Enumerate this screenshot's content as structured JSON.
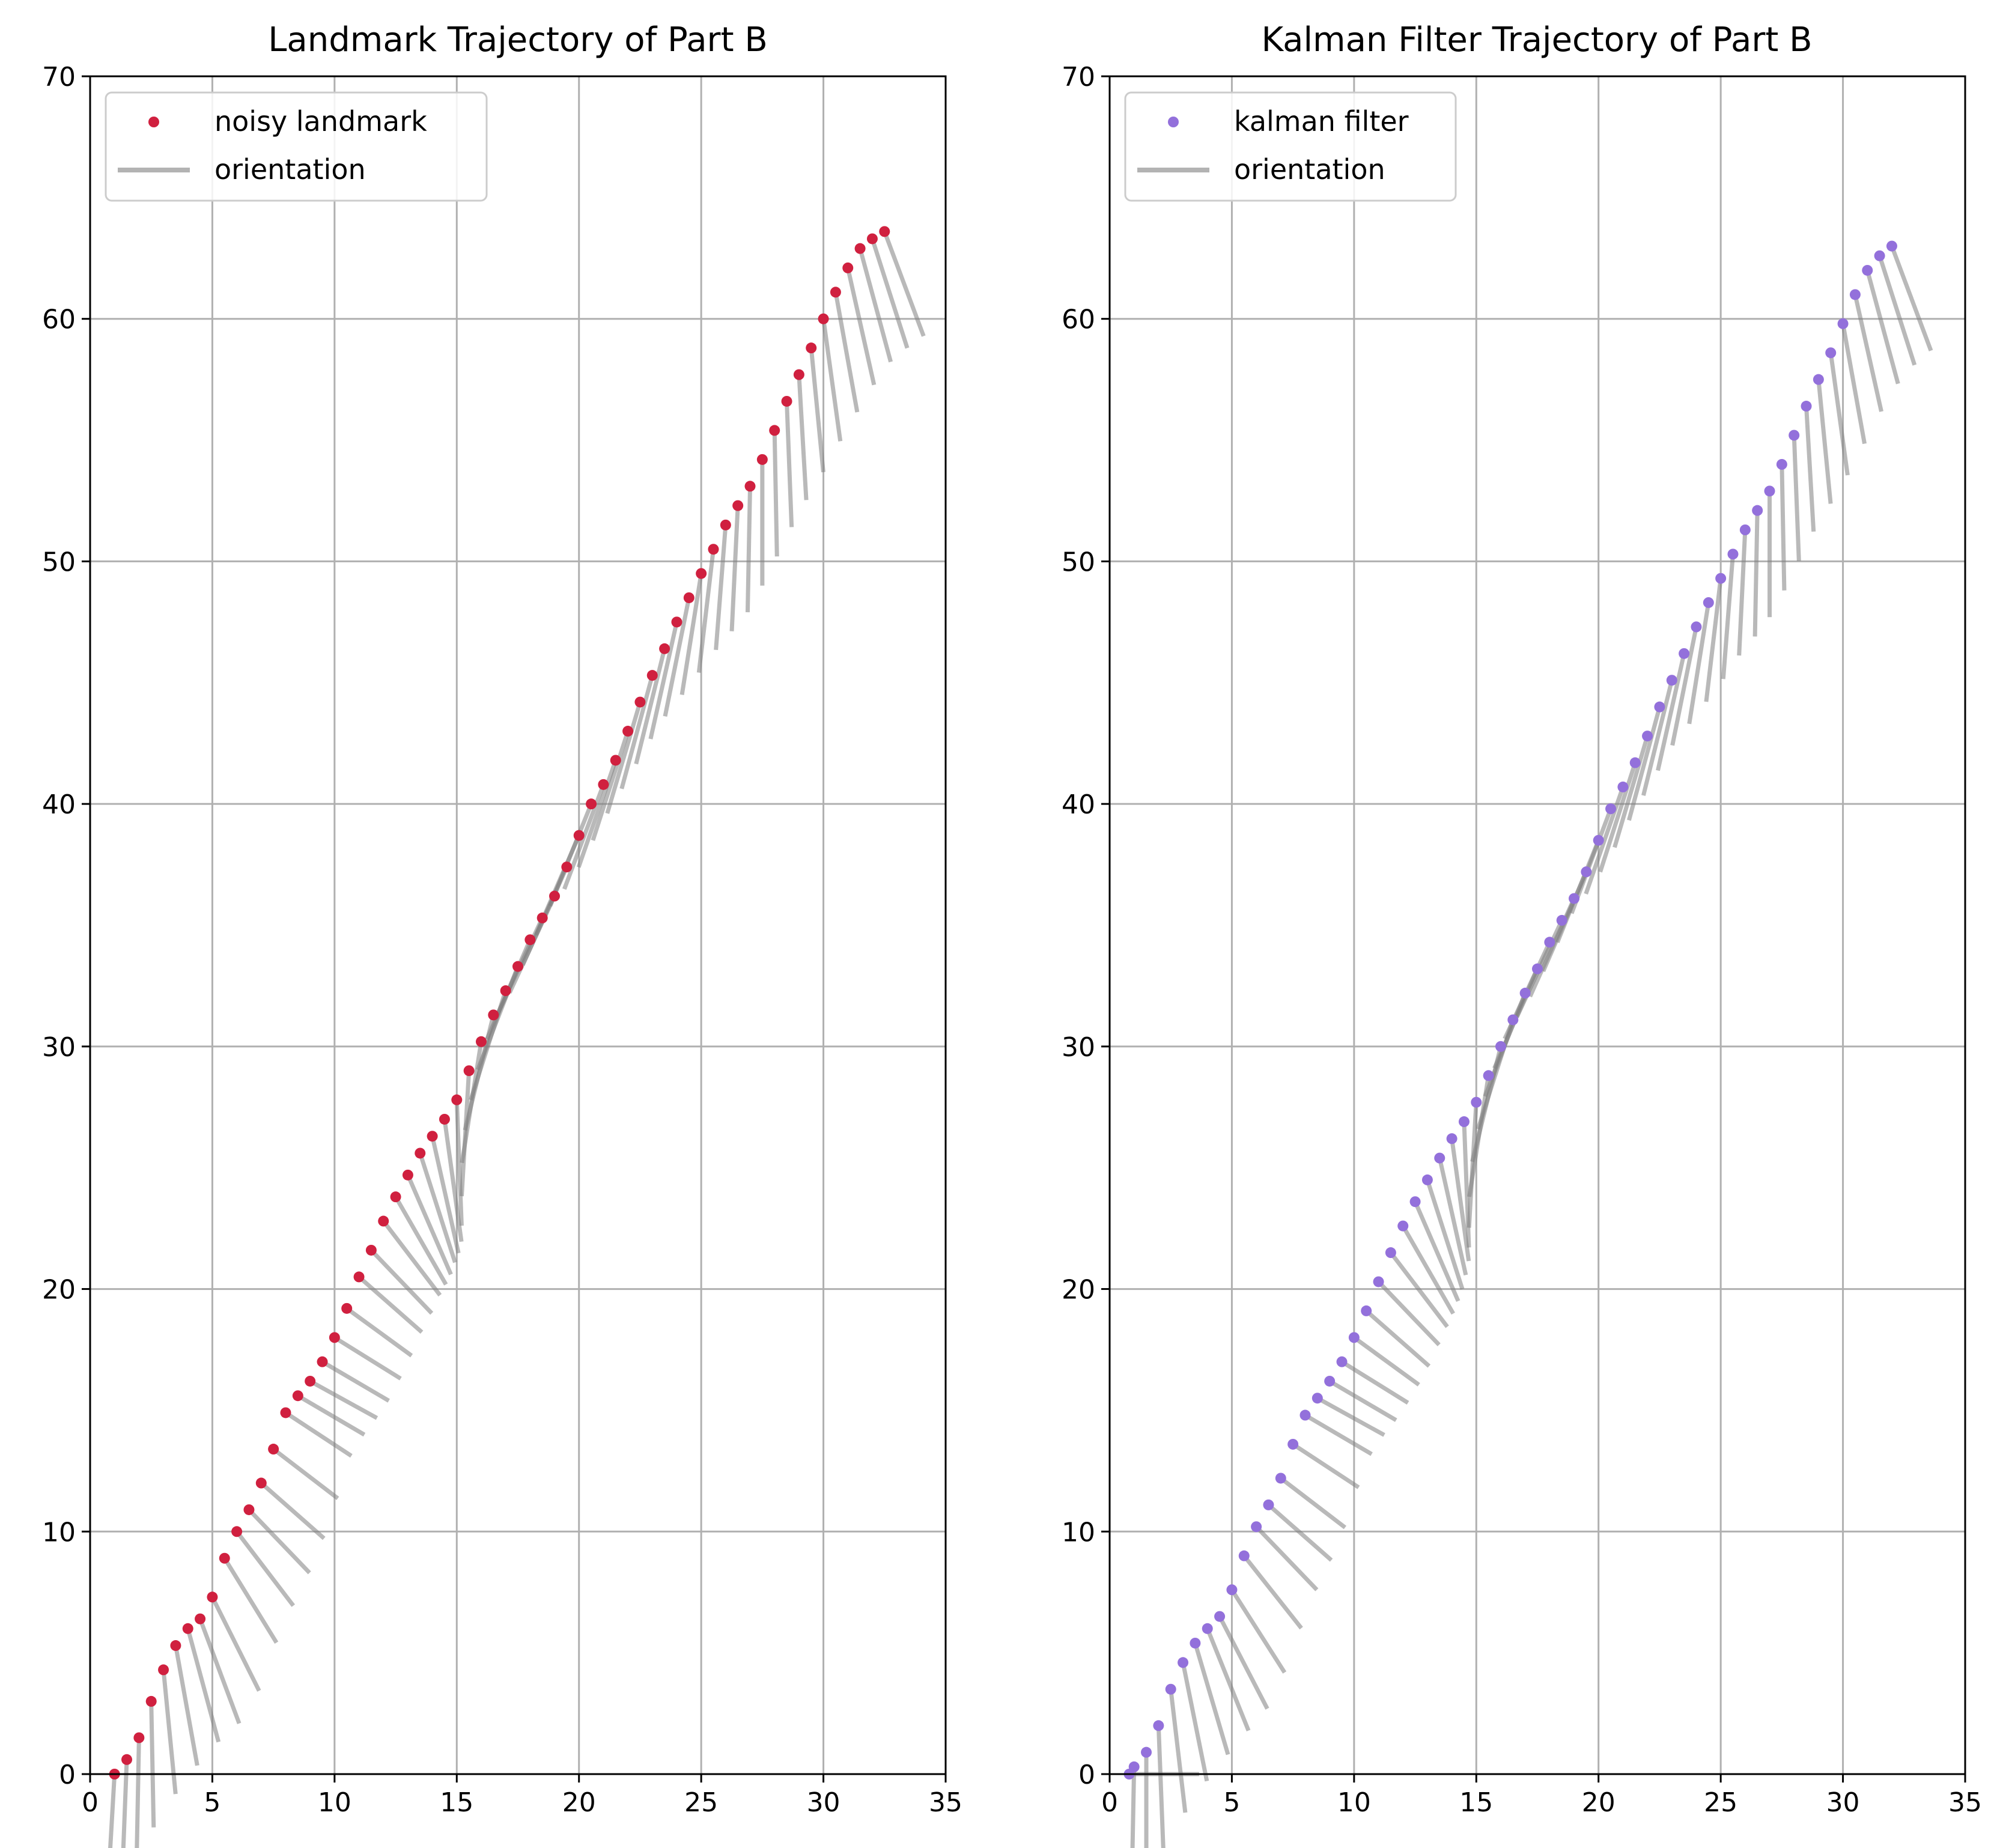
{
  "figure": {
    "background": "#ffffff",
    "grid_color": "#b0b0b0",
    "orientation_color": "#808080"
  },
  "chart_data": [
    {
      "type": "scatter",
      "title": "Landmark Trajectory of Part B",
      "xlabel": "",
      "ylabel": "",
      "xlim": [
        0,
        35
      ],
      "ylim": [
        0,
        70
      ],
      "xticks": [
        "0",
        "5",
        "10",
        "15",
        "20",
        "25",
        "30",
        "35"
      ],
      "yticks": [
        "0",
        "10",
        "20",
        "30",
        "40",
        "50",
        "60",
        "70"
      ],
      "grid": true,
      "legend_position": "top-left",
      "legend": [
        {
          "label": "noisy landmark",
          "marker": "dot",
          "color": "#d0203f"
        },
        {
          "label": "orientation",
          "marker": "line",
          "color": "#b3b3b3"
        }
      ],
      "series": [
        {
          "name": "noisy landmark",
          "kind": "points",
          "color": "#d0203f",
          "x": [
            1.0,
            1.5,
            2.0,
            2.5,
            3.0,
            3.5,
            4.0,
            4.5,
            5.0,
            5.5,
            6.0,
            6.5,
            7.0,
            7.5,
            8.0,
            8.5,
            9.0,
            9.5,
            10.0,
            10.5,
            11.0,
            11.5,
            12.0,
            12.5,
            13.0,
            13.5,
            14.0,
            14.5,
            15.0,
            15.5,
            16.0,
            16.5,
            17.0,
            17.5,
            18.0,
            18.5,
            19.0,
            19.5,
            20.0,
            20.5,
            21.0,
            21.5,
            22.0,
            22.5,
            23.0,
            23.5,
            24.0,
            24.5,
            25.0,
            25.5,
            26.0,
            26.5,
            27.0,
            27.5,
            28.0,
            28.5,
            29.0,
            29.5,
            30.0,
            30.5,
            31.0,
            31.5,
            32.0,
            32.5
          ],
          "y": [
            0.0,
            0.6,
            1.5,
            3.0,
            4.3,
            5.3,
            6.0,
            6.4,
            7.3,
            8.9,
            10.0,
            10.9,
            12.0,
            13.4,
            14.9,
            15.6,
            16.2,
            17.0,
            18.0,
            19.2,
            20.5,
            21.6,
            22.8,
            23.8,
            24.7,
            25.6,
            26.3,
            27.0,
            27.8,
            29.0,
            30.2,
            31.3,
            32.3,
            33.3,
            34.4,
            35.3,
            36.2,
            37.4,
            38.7,
            40.0,
            40.8,
            41.8,
            43.0,
            44.2,
            45.3,
            46.4,
            47.5,
            48.5,
            49.5,
            50.5,
            51.5,
            52.3,
            53.1,
            54.2,
            55.4,
            56.6,
            57.7,
            58.8,
            60.0,
            61.1,
            62.1,
            62.9,
            63.3,
            63.6
          ]
        },
        {
          "name": "orientation",
          "kind": "segments",
          "color": "#808080",
          "length": 5.2,
          "angle_deg": [
            96,
            94,
            92,
            88,
            80,
            72,
            64,
            56,
            48,
            42,
            36,
            30,
            26,
            23,
            20,
            18,
            17,
            18,
            19,
            22,
            26,
            30,
            36,
            44,
            52,
            60,
            68,
            76,
            86,
            96,
            106,
            114,
            120,
            125,
            128,
            130,
            130,
            129,
            128,
            126,
            124,
            122,
            120,
            118,
            116,
            114,
            112,
            110,
            106,
            102,
            98,
            95,
            92,
            90,
            88,
            86,
            84,
            80,
            76,
            72,
            68,
            64,
            60,
            56
          ]
        }
      ]
    },
    {
      "type": "scatter",
      "title": "Kalman Filter Trajectory of Part B",
      "xlabel": "",
      "ylabel": "",
      "xlim": [
        0,
        35
      ],
      "ylim": [
        0,
        70
      ],
      "xticks": [
        "0",
        "5",
        "10",
        "15",
        "20",
        "25",
        "30",
        "35"
      ],
      "yticks": [
        "0",
        "10",
        "20",
        "30",
        "40",
        "50",
        "60",
        "70"
      ],
      "grid": true,
      "legend_position": "top-left",
      "legend": [
        {
          "label": "kalman filter",
          "marker": "dot",
          "color": "#9370db"
        },
        {
          "label": "orientation",
          "marker": "line",
          "color": "#b3b3b3"
        }
      ],
      "series": [
        {
          "name": "kalman filter",
          "kind": "points",
          "color": "#9370db",
          "x": [
            0.8,
            1.0,
            1.5,
            2.0,
            2.5,
            3.0,
            3.5,
            4.0,
            4.5,
            5.0,
            5.5,
            6.0,
            6.5,
            7.0,
            7.5,
            8.0,
            8.5,
            9.0,
            9.5,
            10.0,
            10.5,
            11.0,
            11.5,
            12.0,
            12.5,
            13.0,
            13.5,
            14.0,
            14.5,
            15.0,
            15.5,
            16.0,
            16.5,
            17.0,
            17.5,
            18.0,
            18.5,
            19.0,
            19.5,
            20.0,
            20.5,
            21.0,
            21.5,
            22.0,
            22.5,
            23.0,
            23.5,
            24.0,
            24.5,
            25.0,
            25.5,
            26.0,
            26.5,
            27.0,
            27.5,
            28.0,
            28.5,
            29.0,
            29.5,
            30.0,
            30.5,
            31.0,
            31.5,
            32.0
          ],
          "y": [
            0.0,
            0.3,
            0.9,
            2.0,
            3.5,
            4.6,
            5.4,
            6.0,
            6.5,
            7.6,
            9.0,
            10.2,
            11.1,
            12.2,
            13.6,
            14.8,
            15.5,
            16.2,
            17.0,
            18.0,
            19.1,
            20.3,
            21.5,
            22.6,
            23.6,
            24.5,
            25.4,
            26.2,
            26.9,
            27.7,
            28.8,
            30.0,
            31.1,
            32.2,
            33.2,
            34.3,
            35.2,
            36.1,
            37.2,
            38.5,
            39.8,
            40.7,
            41.7,
            42.8,
            44.0,
            45.1,
            46.2,
            47.3,
            48.3,
            49.3,
            50.3,
            51.3,
            52.1,
            52.9,
            54.0,
            55.2,
            56.4,
            57.5,
            58.6,
            59.8,
            61.0,
            62.0,
            62.6,
            63.0
          ]
        },
        {
          "name": "orientation",
          "kind": "segments",
          "color": "#808080",
          "length": 5.2,
          "angle_deg": [
            0,
            92,
            90,
            86,
            78,
            70,
            62,
            54,
            47,
            41,
            35,
            30,
            26,
            23,
            20,
            18,
            17,
            18,
            19,
            22,
            26,
            30,
            36,
            44,
            52,
            60,
            68,
            76,
            86,
            96,
            106,
            114,
            120,
            125,
            128,
            130,
            130,
            129,
            128,
            126,
            124,
            122,
            120,
            118,
            116,
            114,
            112,
            110,
            106,
            102,
            98,
            95,
            92,
            90,
            88,
            86,
            84,
            80,
            76,
            72,
            68,
            64,
            60,
            56
          ]
        }
      ]
    }
  ]
}
